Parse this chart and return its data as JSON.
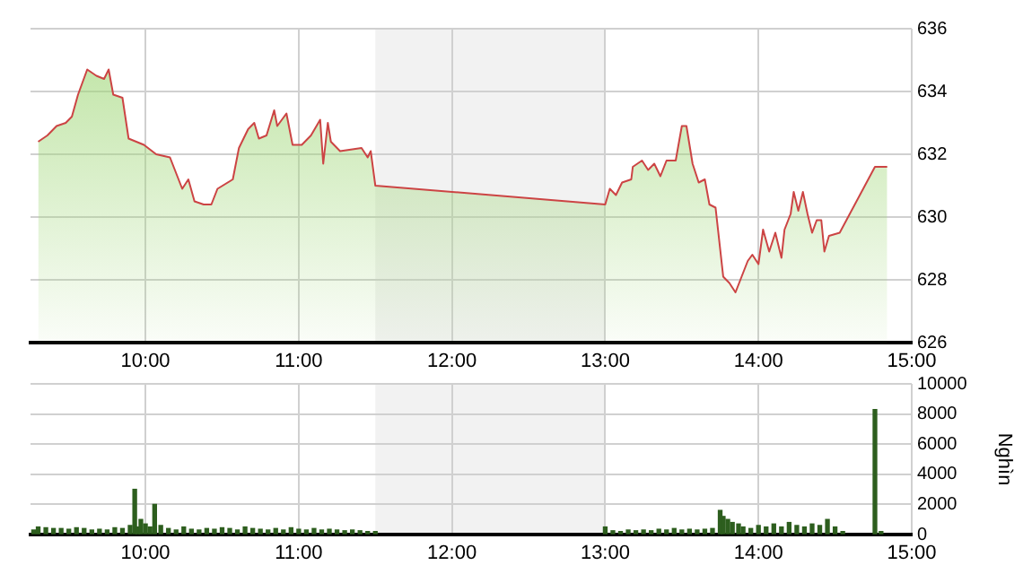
{
  "chart_data": [
    {
      "type": "area",
      "xlim": [
        9.25,
        15
      ],
      "xticks": [
        {
          "value": 10,
          "label": "10:00"
        },
        {
          "value": 11,
          "label": "11:00"
        },
        {
          "value": 12,
          "label": "12:00"
        },
        {
          "value": 13,
          "label": "13:00"
        },
        {
          "value": 14,
          "label": "14:00"
        },
        {
          "value": 15,
          "label": "15:00"
        }
      ],
      "ylim": [
        626,
        636
      ],
      "yticks": [
        626,
        628,
        630,
        632,
        634,
        636
      ],
      "grid": true,
      "legend": false,
      "bands": [
        {
          "axis": "x",
          "from": 11.5,
          "to": 13,
          "color": "#f2f2f2"
        }
      ],
      "series": [
        {
          "color": "#cc4444",
          "x": [
            9.3,
            9.36,
            9.42,
            9.48,
            9.52,
            9.56,
            9.62,
            9.68,
            9.73,
            9.76,
            9.79,
            9.85,
            9.89,
            9.99,
            10.07,
            10.16,
            10.24,
            10.28,
            10.32,
            10.38,
            10.43,
            10.47,
            10.57,
            10.61,
            10.67,
            10.71,
            10.74,
            10.79,
            10.84,
            10.86,
            10.92,
            10.96,
            11.02,
            11.08,
            11.14,
            11.16,
            11.19,
            11.21,
            11.27,
            11.41,
            11.45,
            11.47,
            11.5,
            13.0,
            13.03,
            13.07,
            13.11,
            13.17,
            13.18,
            13.24,
            13.28,
            13.32,
            13.36,
            13.4,
            13.46,
            13.5,
            13.53,
            13.57,
            13.61,
            13.65,
            13.68,
            13.72,
            13.77,
            13.81,
            13.85,
            13.89,
            13.93,
            13.96,
            14.0,
            14.03,
            14.07,
            14.11,
            14.15,
            14.17,
            14.21,
            14.23,
            14.26,
            14.29,
            14.32,
            14.35,
            14.38,
            14.41,
            14.43,
            14.46,
            14.53,
            14.76,
            14.84
          ],
          "values": [
            632.4,
            632.6,
            632.9,
            633.0,
            633.2,
            633.9,
            634.7,
            634.5,
            634.4,
            634.7,
            633.9,
            633.8,
            632.5,
            632.3,
            632.0,
            631.9,
            630.9,
            631.2,
            630.5,
            630.4,
            630.4,
            630.9,
            631.2,
            632.2,
            632.8,
            633.0,
            632.5,
            632.6,
            633.4,
            632.9,
            633.3,
            632.3,
            632.3,
            632.6,
            633.1,
            631.7,
            633.0,
            632.4,
            632.1,
            632.2,
            631.9,
            632.1,
            631.0,
            630.4,
            630.9,
            630.7,
            631.1,
            631.2,
            631.6,
            631.8,
            631.5,
            631.7,
            631.3,
            631.8,
            631.8,
            632.9,
            632.9,
            631.7,
            631.1,
            631.2,
            630.4,
            630.3,
            628.1,
            627.9,
            627.6,
            628.1,
            628.6,
            628.8,
            628.5,
            629.6,
            628.9,
            629.5,
            628.7,
            629.6,
            630.1,
            630.8,
            630.2,
            630.8,
            630.1,
            629.5,
            629.9,
            629.9,
            628.9,
            629.4,
            629.5,
            631.6,
            631.6
          ]
        }
      ]
    },
    {
      "type": "bar",
      "xlim": [
        9.25,
        15
      ],
      "xticks": [
        {
          "value": 10,
          "label": "10:00"
        },
        {
          "value": 11,
          "label": "11:00"
        },
        {
          "value": 12,
          "label": "12:00"
        },
        {
          "value": 13,
          "label": "13:00"
        },
        {
          "value": 14,
          "label": "14:00"
        },
        {
          "value": 15,
          "label": "15:00"
        }
      ],
      "ylim": [
        0,
        10000
      ],
      "yticks": [
        0,
        2000,
        4000,
        6000,
        8000,
        10000
      ],
      "y2label": "Nghìn",
      "grid": true,
      "legend": false,
      "bands": [
        {
          "axis": "x",
          "from": 11.5,
          "to": 13,
          "color": "#f2f2f2"
        }
      ],
      "series": [
        {
          "color": "#2d5e1e",
          "x": [
            9.27,
            9.3,
            9.35,
            9.4,
            9.45,
            9.5,
            9.55,
            9.6,
            9.65,
            9.7,
            9.75,
            9.8,
            9.85,
            9.9,
            9.93,
            9.95,
            9.97,
            10.0,
            10.03,
            10.06,
            10.1,
            10.15,
            10.2,
            10.25,
            10.3,
            10.35,
            10.4,
            10.45,
            10.5,
            10.55,
            10.6,
            10.65,
            10.7,
            10.75,
            10.8,
            10.85,
            10.9,
            10.95,
            11.0,
            11.05,
            11.1,
            11.15,
            11.2,
            11.25,
            11.3,
            11.35,
            11.4,
            11.45,
            11.5,
            13.0,
            13.05,
            13.1,
            13.15,
            13.2,
            13.25,
            13.3,
            13.35,
            13.4,
            13.45,
            13.5,
            13.55,
            13.6,
            13.65,
            13.7,
            13.75,
            13.77,
            13.8,
            13.83,
            13.87,
            13.9,
            13.95,
            14.0,
            14.05,
            14.1,
            14.15,
            14.2,
            14.25,
            14.3,
            14.35,
            14.4,
            14.45,
            14.5,
            14.55,
            14.76,
            14.8
          ],
          "values": [
            300,
            500,
            450,
            400,
            400,
            350,
            450,
            400,
            300,
            350,
            300,
            450,
            400,
            600,
            3000,
            500,
            1000,
            700,
            500,
            2000,
            600,
            400,
            300,
            500,
            350,
            300,
            400,
            350,
            450,
            400,
            300,
            500,
            400,
            350,
            300,
            400,
            300,
            450,
            350,
            300,
            400,
            300,
            350,
            300,
            250,
            300,
            250,
            200,
            200,
            500,
            250,
            200,
            300,
            250,
            300,
            250,
            350,
            300,
            400,
            300,
            350,
            300,
            350,
            400,
            1600,
            1200,
            1000,
            800,
            700,
            500,
            400,
            600,
            500,
            700,
            500,
            800,
            600,
            500,
            700,
            600,
            1000,
            500,
            200,
            8300,
            200
          ]
        }
      ]
    }
  ]
}
